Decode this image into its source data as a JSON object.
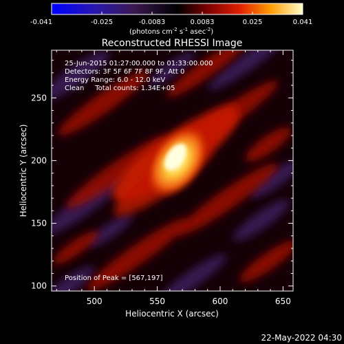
{
  "colorbar": {
    "ticks": [
      "-0.041",
      "-0.025",
      "-0.0083",
      "0.0083",
      "0.025",
      "0.041"
    ],
    "unit_label": "(photons cm",
    "unit_exp1": "-2",
    "unit_mid": " s",
    "unit_exp2": "-1",
    "unit_mid2": " asec",
    "unit_exp3": "-2",
    "unit_end": ")",
    "range": [
      -0.041,
      0.041
    ]
  },
  "title": "Reconstructed RHESSI Image",
  "annotations": {
    "time": "25-Jun-2015 01:27:00.000 to 01:33:00.000",
    "detectors": "Detectors: 3F 5F 6F 7F 8F 9F, Att 0",
    "energy": "Energy Range: 6.0 - 12.0 keV",
    "clean": "Clean     Total counts: 1.34E+05",
    "peak": "Position of Peak = [567,197]"
  },
  "timestamp": "22-May-2022 04:30",
  "chart_data": {
    "type": "heatmap",
    "title": "Reconstructed RHESSI Image",
    "xlabel": "Heliocentric X (arcsec)",
    "ylabel": "Heliocentric Y (arcsec)",
    "xlim": [
      466,
      658
    ],
    "ylim": [
      96,
      288
    ],
    "xticks": [
      "500",
      "550",
      "600",
      "650"
    ],
    "xtick_values": [
      500,
      550,
      600,
      650
    ],
    "yticks": [
      "100",
      "150",
      "200",
      "250"
    ],
    "ytick_values": [
      100,
      150,
      200,
      250
    ],
    "peak": [
      567,
      197
    ],
    "colormap": [
      "#0000ff",
      "#4b2a9b",
      "#1a0a20",
      "#000000",
      "#8b0000",
      "#e03010",
      "#ff8a00",
      "#ffe060",
      "#ffffe0"
    ]
  }
}
